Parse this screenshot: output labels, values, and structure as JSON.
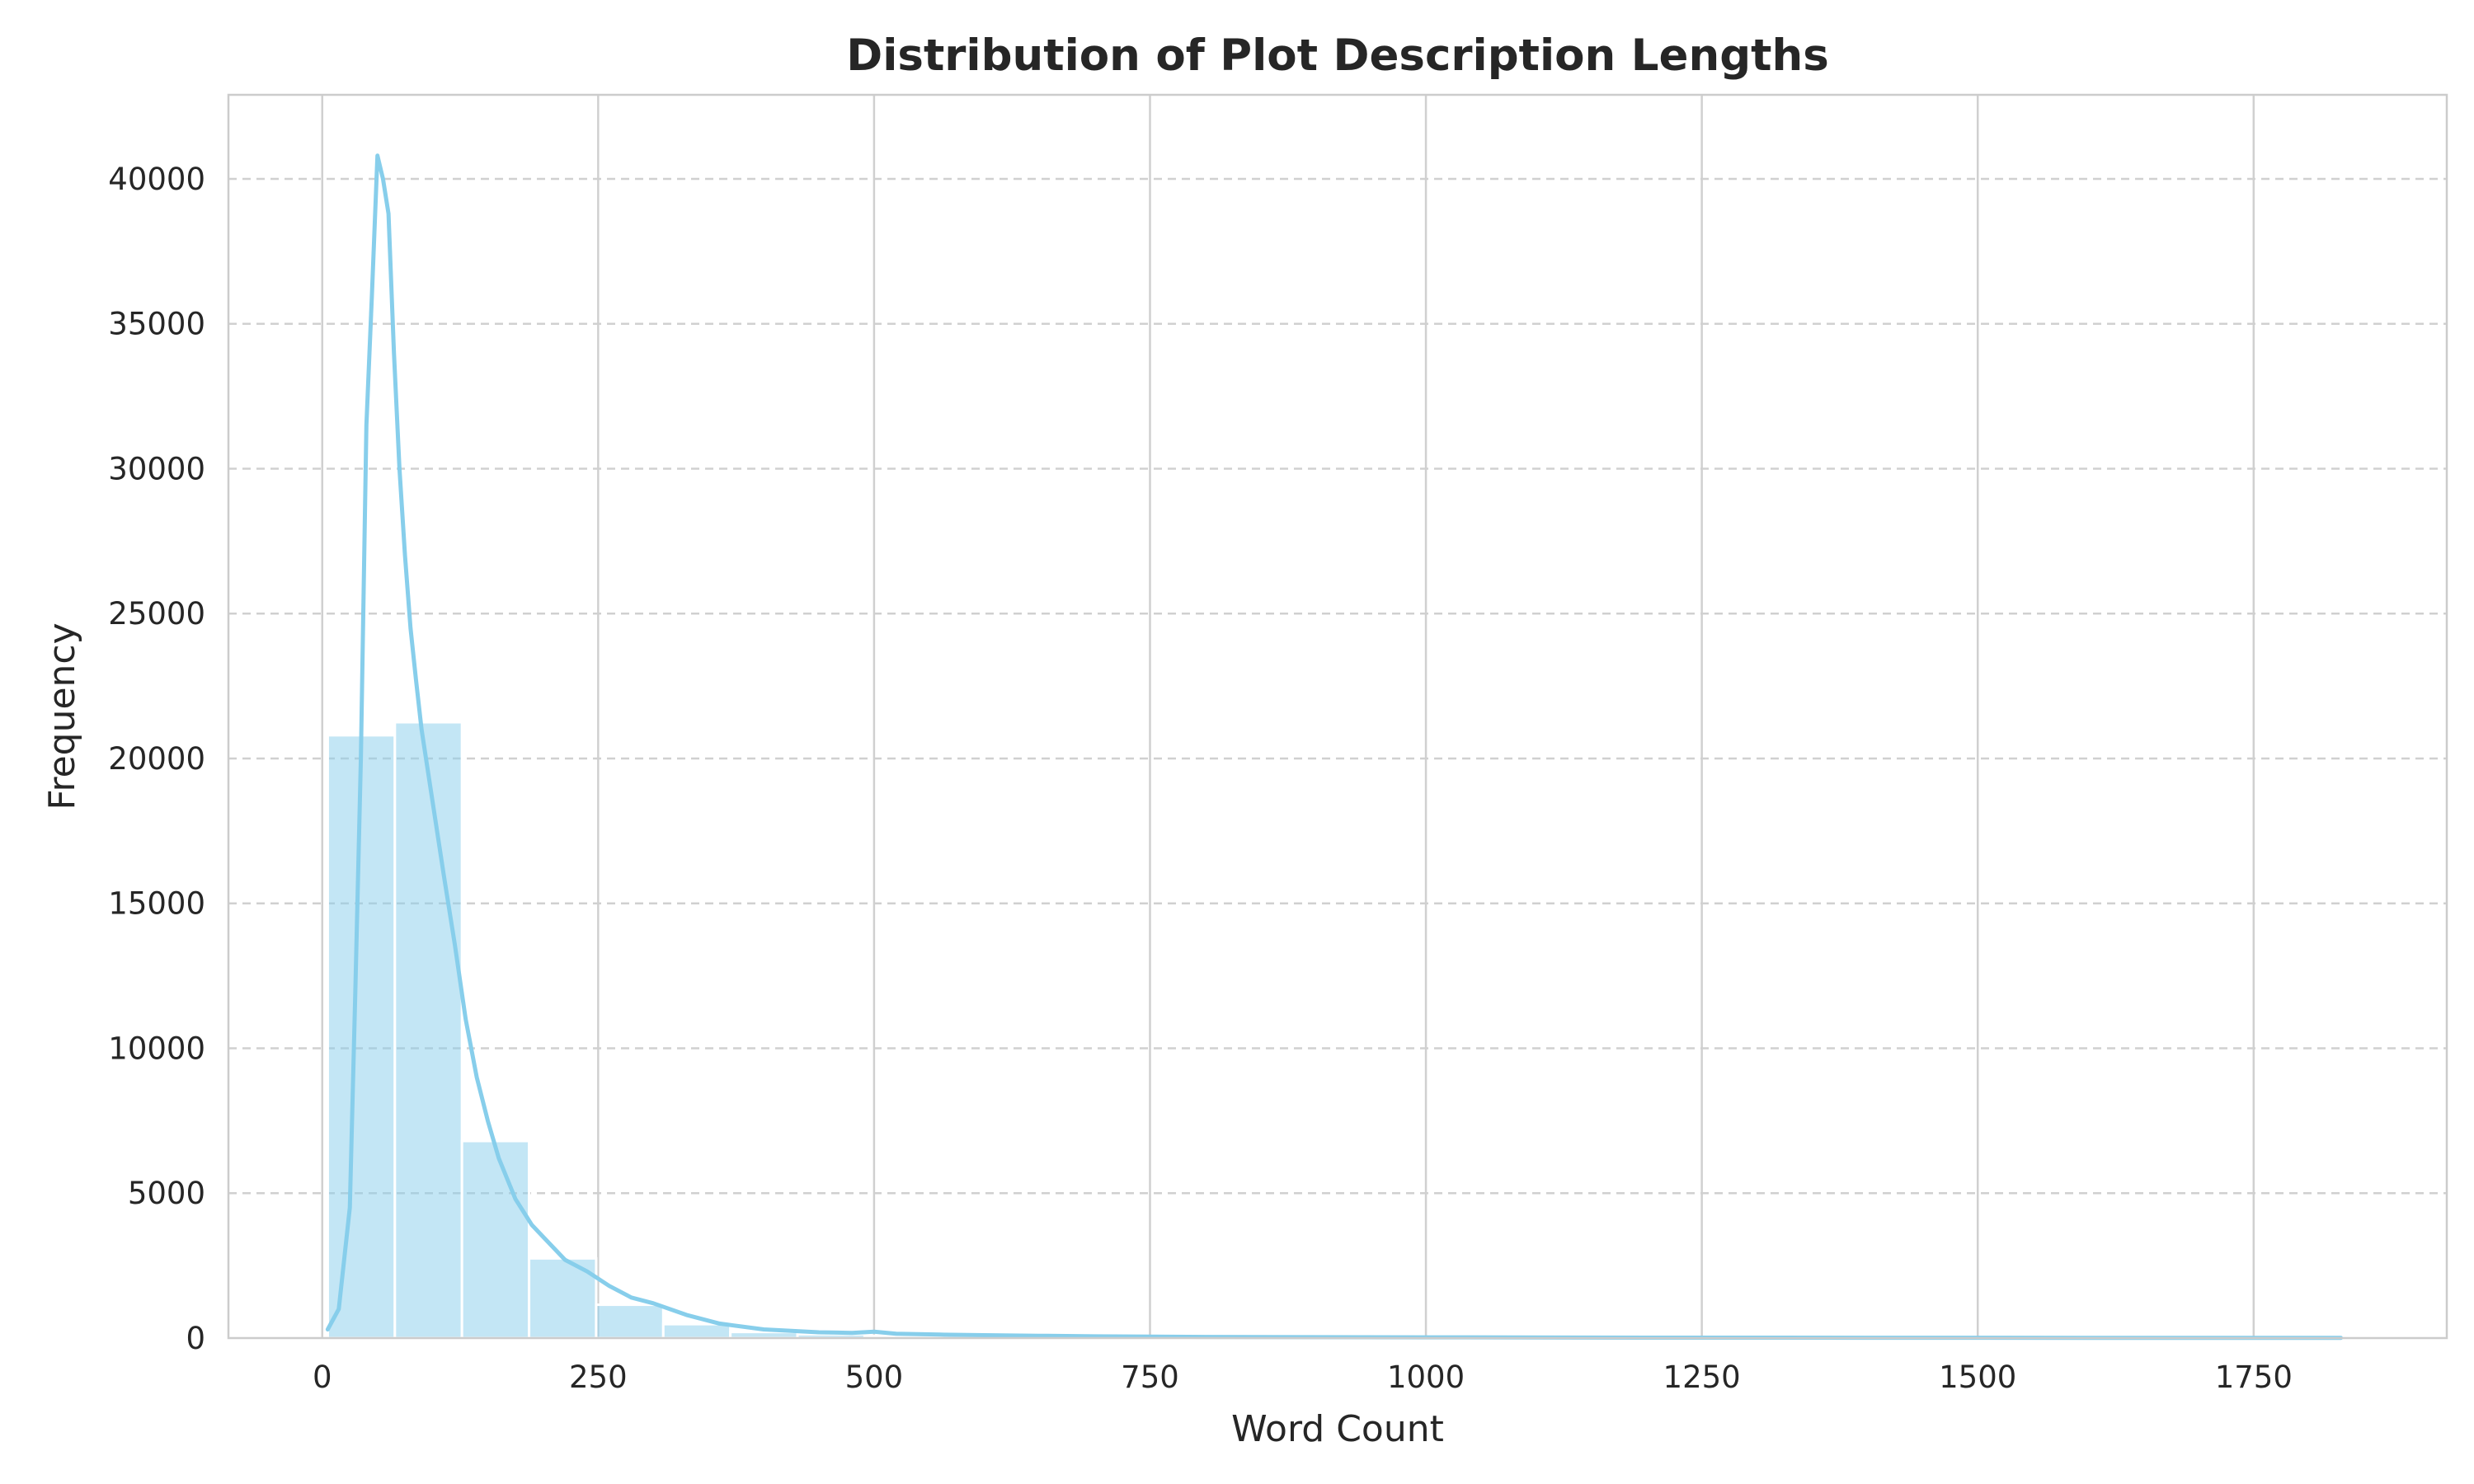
{
  "chart_data": {
    "type": "bar",
    "title": "Distribution of Plot Description Lengths",
    "xlabel": "Word Count",
    "ylabel": "Frequency",
    "xlim": [
      -85,
      1925
    ],
    "ylim": [
      0,
      42900
    ],
    "xticks": [
      0,
      250,
      500,
      750,
      1000,
      1250,
      1500,
      1750
    ],
    "yticks": [
      0,
      5000,
      10000,
      15000,
      20000,
      25000,
      30000,
      35000,
      40000
    ],
    "x_grid": "solid vertical",
    "y_grid": "dashed horizontal",
    "legend": "none",
    "bins": {
      "edges": [
        5,
        65.8,
        126.6,
        187.4,
        248.2,
        309,
        369.8,
        430.6,
        491.4,
        552.2,
        613,
        673.8,
        734.6,
        795.4,
        856.2,
        917,
        977.8,
        1038.6,
        1099.4,
        1160.2,
        1221,
        1281.8,
        1342.6,
        1403.4,
        1464.2,
        1525,
        1585.8,
        1646.6,
        1707.4,
        1768.2,
        1829
      ],
      "counts": [
        20800,
        21250,
        6800,
        2750,
        1150,
        480,
        210,
        130,
        80,
        50,
        35,
        25,
        18,
        12,
        10,
        8,
        6,
        5,
        4,
        4,
        3,
        3,
        2,
        2,
        2,
        2,
        1,
        1,
        1,
        1
      ]
    },
    "series": [
      {
        "type": "kde-line",
        "x": [
          5,
          15,
          25,
          30,
          35,
          40,
          45,
          50,
          55,
          60,
          65,
          70,
          75,
          80,
          85,
          90,
          100,
          110,
          120,
          130,
          140,
          150,
          160,
          175,
          190,
          200,
          220,
          240,
          260,
          280,
          300,
          330,
          360,
          400,
          450,
          480,
          500,
          520,
          560,
          600,
          650,
          700,
          800,
          1000,
          1200,
          1400,
          1600,
          1829
        ],
        "y": [
          300,
          1000,
          4500,
          12000,
          20000,
          31500,
          36000,
          40800,
          40000,
          38800,
          34000,
          30000,
          27000,
          24500,
          22700,
          21000,
          18500,
          16000,
          13600,
          11000,
          9000,
          7500,
          6200,
          4800,
          3900,
          3500,
          2700,
          2300,
          1800,
          1400,
          1200,
          800,
          500,
          300,
          200,
          180,
          220,
          150,
          120,
          100,
          80,
          60,
          40,
          25,
          15,
          10,
          8,
          5
        ]
      }
    ],
    "colors": {
      "bar_fill": "#87CEEB",
      "bar_opacity": "0.5",
      "kde_line": "#87CEEB",
      "grid": "#d0d0d0",
      "axes_edge": "#cccccc",
      "text": "#262626"
    }
  }
}
